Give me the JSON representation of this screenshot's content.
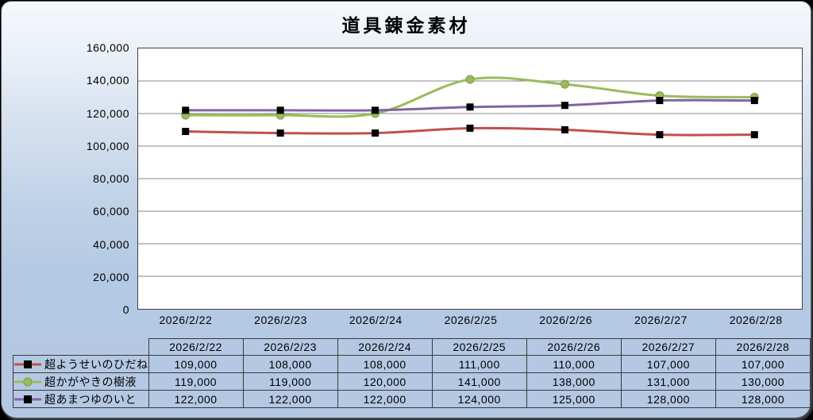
{
  "page": {
    "title": "道具錬金素材"
  },
  "chart_data": {
    "type": "line",
    "title": "道具錬金素材",
    "categories": [
      "2026/2/22",
      "2026/2/23",
      "2026/2/24",
      "2026/2/25",
      "2026/2/26",
      "2026/2/27",
      "2026/2/28"
    ],
    "series": [
      {
        "name": "超ようせいのひだね",
        "color": "#C0504D",
        "marker": "square",
        "marker_color": "#000000",
        "values": [
          109000,
          108000,
          108000,
          111000,
          110000,
          107000,
          107000
        ]
      },
      {
        "name": "超かがやきの樹液",
        "color": "#9BBB59",
        "marker": "circle",
        "marker_color": "#9BBB59",
        "values": [
          119000,
          119000,
          120000,
          141000,
          138000,
          131000,
          130000
        ]
      },
      {
        "name": "超あまつゆのいと",
        "color": "#8064A2",
        "marker": "square",
        "marker_color": "#000000",
        "values": [
          122000,
          122000,
          122000,
          124000,
          125000,
          128000,
          128000
        ]
      }
    ],
    "ylim": [
      0,
      160000
    ],
    "ytick_step": 20000,
    "grid": true,
    "smooth": true,
    "legend_position": "table-left",
    "number_format": "#,##0"
  },
  "colors": {
    "gridline": "#878787",
    "plot_border": "#404040",
    "table_border": "#3a3a3a",
    "plot_background": "#FFFFFF",
    "background_top": "#F5F8FC",
    "background_bottom": "#B4C8E3",
    "text": "#000000"
  }
}
